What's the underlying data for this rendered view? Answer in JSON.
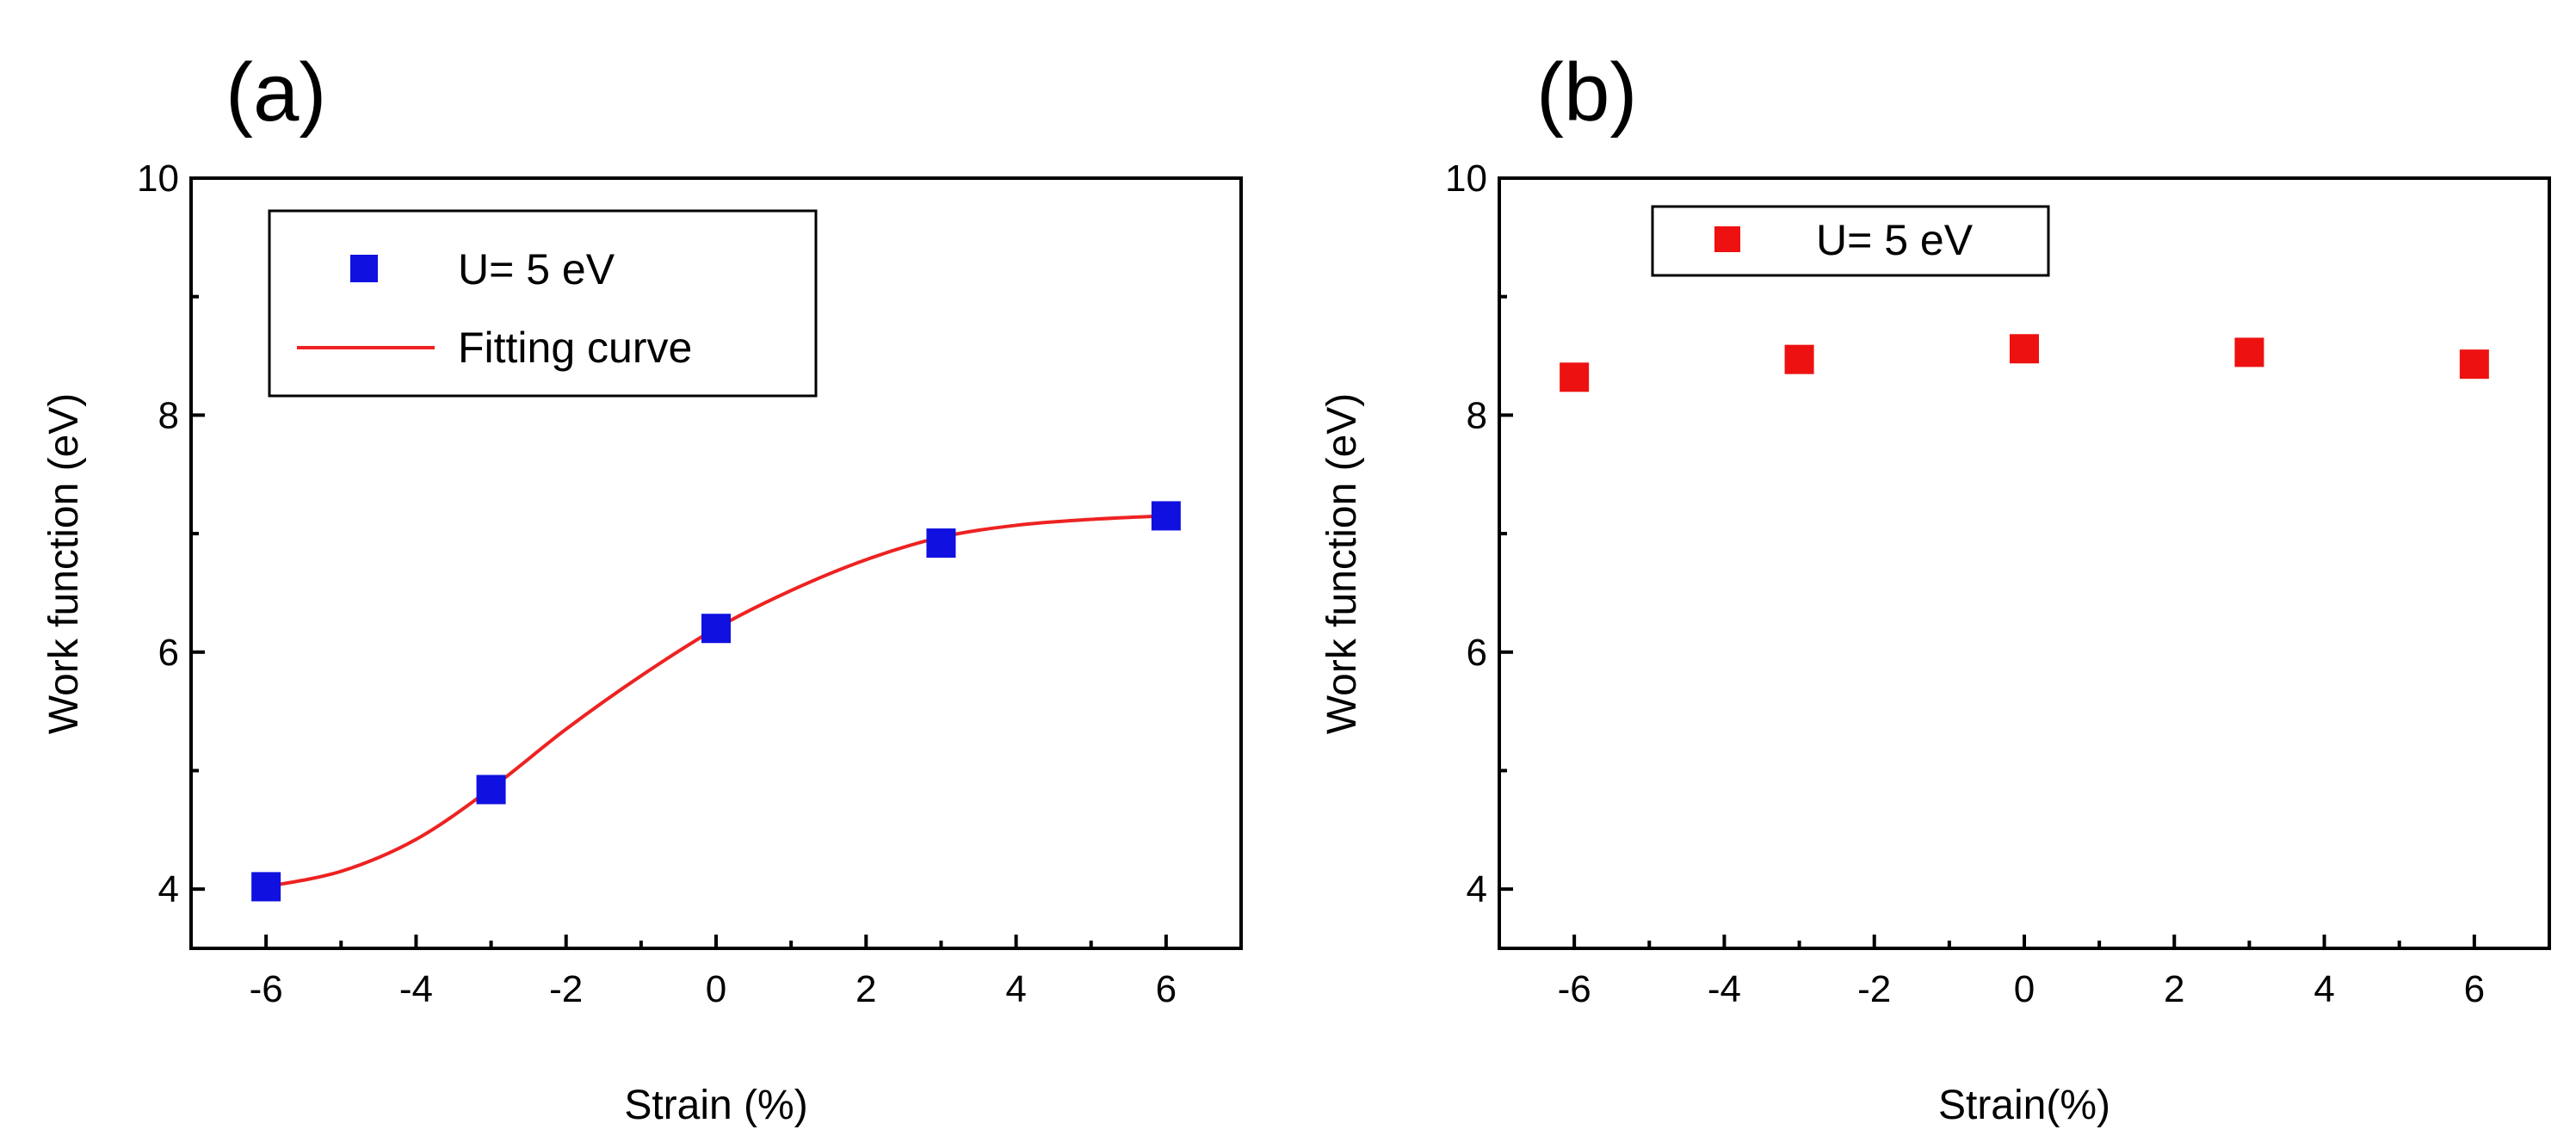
{
  "chart_data": [
    {
      "panel_label": "(a)",
      "type": "scatter",
      "xlabel": "Strain (%)",
      "ylabel": "Work function (eV)",
      "xlim": [
        -7,
        7
      ],
      "ylim": [
        3.5,
        10
      ],
      "xticks": [
        -6,
        -4,
        -2,
        0,
        2,
        4,
        6
      ],
      "xtick_labels": [
        "-6",
        "-4",
        "-2",
        "0",
        "2",
        "4",
        "6"
      ],
      "yticks": [
        4,
        6,
        8,
        10
      ],
      "ytick_labels": [
        "4",
        "6",
        "8",
        "10"
      ],
      "legend_position": "top-left",
      "series": [
        {
          "name": "U= 5 eV",
          "kind": "markers",
          "marker": "square",
          "color": "#1010e0",
          "x": [
            -6,
            -3,
            0,
            3,
            6
          ],
          "y": [
            4.02,
            4.84,
            6.2,
            6.92,
            7.15
          ]
        },
        {
          "name": "Fitting curve",
          "kind": "line",
          "color": "#ee2222",
          "x": [
            -6,
            -5,
            -4,
            -3,
            -2,
            -1,
            0,
            1,
            2,
            3,
            4,
            5,
            6
          ],
          "y": [
            4.02,
            4.15,
            4.42,
            4.85,
            5.35,
            5.8,
            6.2,
            6.52,
            6.78,
            6.97,
            7.07,
            7.12,
            7.15
          ]
        }
      ]
    },
    {
      "panel_label": "(b)",
      "type": "scatter",
      "xlabel": "Strain(%)",
      "ylabel": "Work function (eV)",
      "xlim": [
        -7,
        7
      ],
      "ylim": [
        3.5,
        10
      ],
      "xticks": [
        -6,
        -4,
        -2,
        0,
        2,
        4,
        6
      ],
      "xtick_labels": [
        "-6",
        "-4",
        "-2",
        "0",
        "2",
        "4",
        "6"
      ],
      "yticks": [
        4,
        6,
        8,
        10
      ],
      "ytick_labels": [
        "4",
        "6",
        "8",
        "10"
      ],
      "legend_position": "top-left",
      "series": [
        {
          "name": "U= 5 eV",
          "kind": "markers",
          "marker": "square",
          "color": "#ee1111",
          "x": [
            -6,
            -3,
            0,
            3,
            6
          ],
          "y": [
            8.32,
            8.47,
            8.56,
            8.53,
            8.43
          ]
        }
      ]
    }
  ]
}
